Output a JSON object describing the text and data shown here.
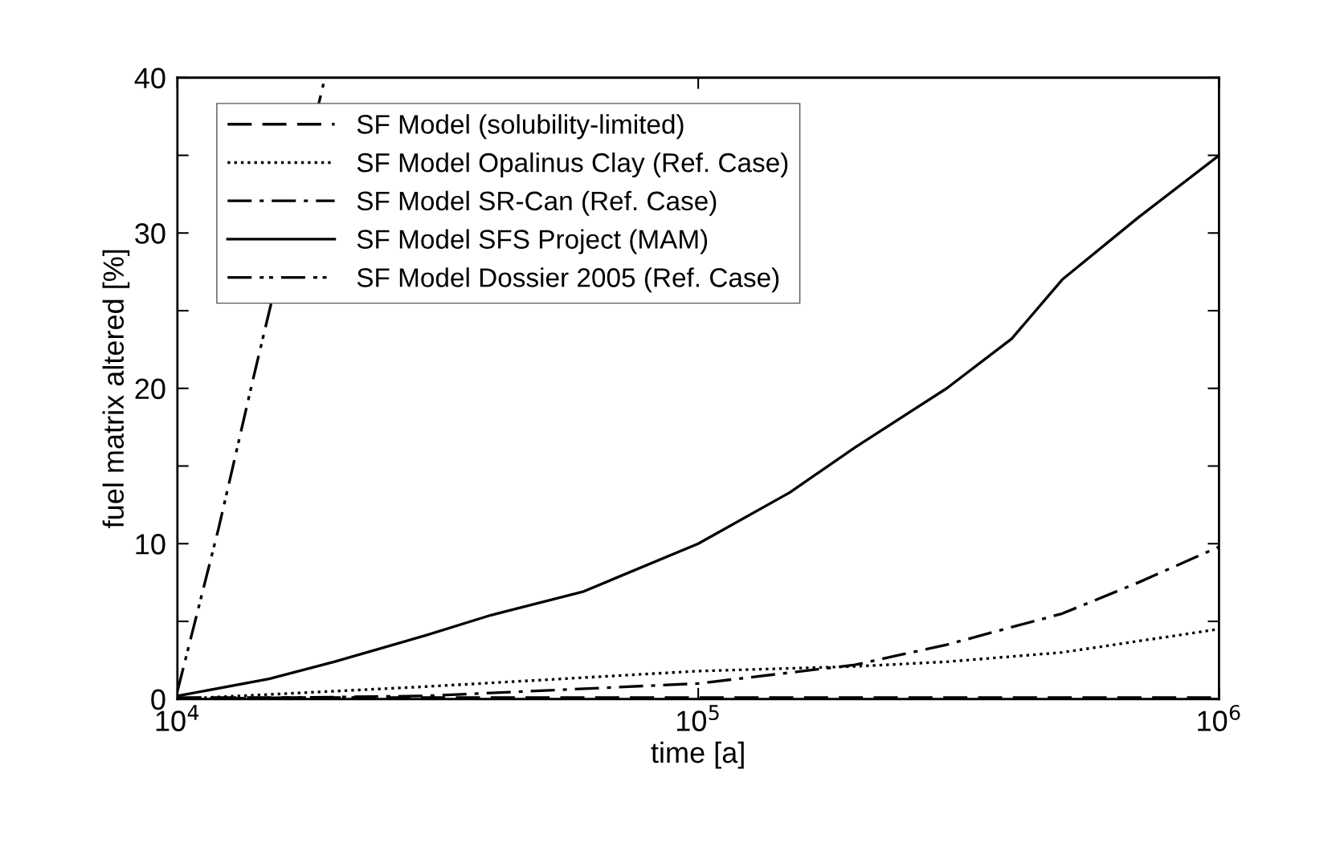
{
  "chart_data": {
    "type": "line",
    "xlabel": "time [a]",
    "ylabel": "fuel matrix altered [%]",
    "log": "x",
    "xlim": [
      10000,
      1000000
    ],
    "xticks": [
      {
        "value": 10000,
        "label": "10$^{4}$"
      },
      {
        "value": 100000,
        "label": "10$^{5}$"
      },
      {
        "value": 1000000,
        "label": "10$^{6}$"
      }
    ],
    "ylim": [
      0,
      40
    ],
    "yticks": [
      0,
      {
        "value": 5,
        "label": null
      },
      10,
      {
        "value": 15,
        "label": null
      },
      20,
      {
        "value": 25,
        "label": null
      },
      30,
      {
        "value": 35,
        "label": null
      },
      40
    ],
    "grid": false,
    "legend": "top left",
    "series": [
      {
        "name": "SF Model (solubility-limited)",
        "color": "#000000",
        "line_style": "dashed",
        "x": [
          10000,
          100000,
          1000000
        ],
        "values": [
          0.1,
          0.1,
          0.1
        ]
      },
      {
        "name": "SF Model Opalinus Clay (Ref. Case)",
        "color": "#000000",
        "line_style": "dotted",
        "x": [
          10000,
          30000,
          100000,
          200000,
          300000,
          500000,
          1000000
        ],
        "values": [
          0,
          0.8,
          1.8,
          2.1,
          2.4,
          3.0,
          4.5
        ]
      },
      {
        "name": "SF Model SR-Can (Ref. Case)",
        "color": "#000000",
        "line_style": "dashdot",
        "x": [
          10000,
          30000,
          100000,
          200000,
          300000,
          500000,
          700000,
          1000000
        ],
        "values": [
          0,
          0.2,
          1.0,
          2.2,
          3.5,
          5.5,
          7.5,
          9.8
        ]
      },
      {
        "name": "SF Model SFS Project (MAM)",
        "color": "#000000",
        "line_style": "solid",
        "x": [
          10000,
          15000,
          20000,
          30000,
          40000,
          60000,
          100000,
          150000,
          200000,
          300000,
          400000,
          500000,
          700000,
          1000000
        ],
        "values": [
          0.2,
          1.3,
          2.4,
          4.1,
          5.4,
          6.9,
          10,
          13.3,
          16.2,
          20,
          23.2,
          27,
          31,
          35
        ]
      },
      {
        "name": "SF Model Dossier 2005 (Ref. Case)",
        "color": "#000000",
        "line_style": "dashdotdot",
        "x": [
          10000,
          12000,
          13930,
          19200
        ],
        "values": [
          0.5,
          11.0,
          20.4,
          40
        ]
      }
    ]
  }
}
